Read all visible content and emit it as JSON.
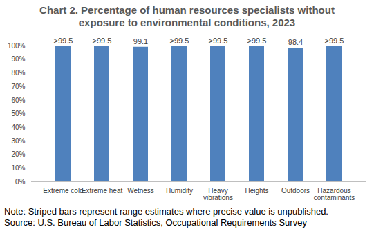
{
  "chart_data": {
    "type": "bar",
    "title": "Chart 2. Percentage of human resources specialists without exposure to environmental conditions, 2023",
    "categories": [
      "Extreme cold",
      "Extreme heat",
      "Wetness",
      "Humidity",
      "Heavy vibrations",
      "Heights",
      "Outdoors",
      "Hazardous contaminants"
    ],
    "values": [
      99.5,
      99.5,
      99.1,
      99.5,
      99.5,
      99.5,
      98.4,
      99.5
    ],
    "value_labels": [
      ">99.5",
      ">99.5",
      "99.1",
      ">99.5",
      ">99.5",
      ">99.5",
      "98.4",
      ">99.5"
    ],
    "color": "#4f81bd",
    "ylim": [
      0,
      100
    ],
    "yticks": [
      {
        "value": 0,
        "label": "0%"
      },
      {
        "value": 10,
        "label": "10%"
      },
      {
        "value": 20,
        "label": "20%"
      },
      {
        "value": 30,
        "label": "30%"
      },
      {
        "value": 40,
        "label": "40%"
      },
      {
        "value": 50,
        "label": "50%"
      },
      {
        "value": 60,
        "label": "60%"
      },
      {
        "value": 70,
        "label": "70%"
      },
      {
        "value": 80,
        "label": "80%"
      },
      {
        "value": 90,
        "label": "90%"
      },
      {
        "value": 100,
        "label": "100%"
      }
    ],
    "grid": false,
    "data_labels": true,
    "note": "Note: Striped bars represent range estimates where precise value is unpublished.",
    "source": "Source: U.S. Bureau of Labor Statistics, Occupational Requirements Survey"
  }
}
